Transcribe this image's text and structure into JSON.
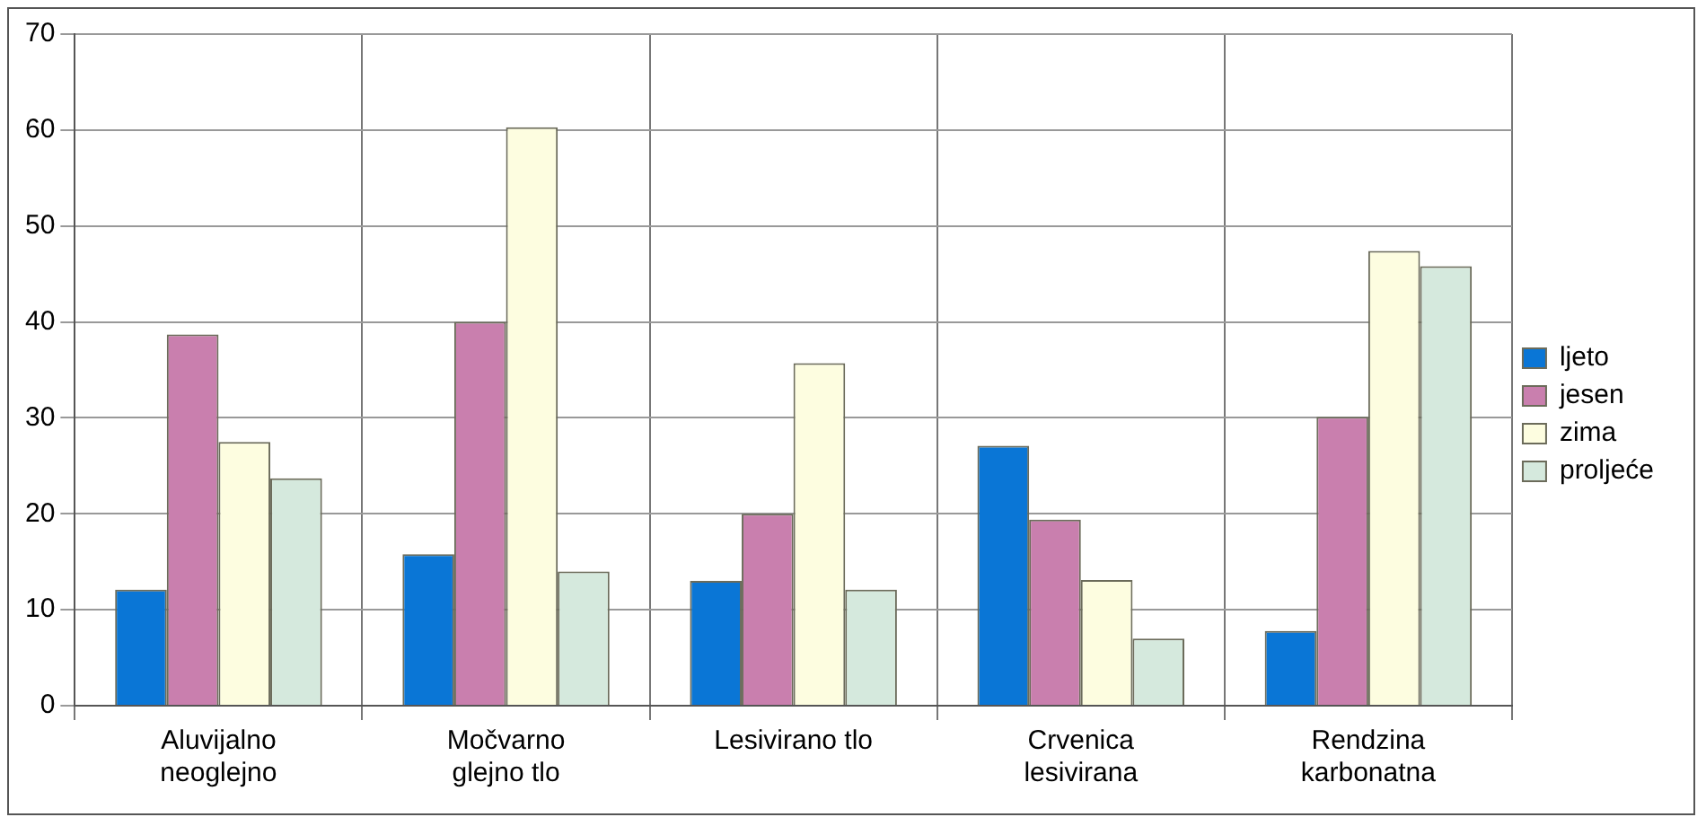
{
  "chart_data": {
    "type": "bar",
    "categories": [
      "Aluvijalno\nneoglejno",
      "Močvarno\nglejno tlo",
      "Lesivirano tlo",
      "Crvenica\nlesivirana",
      "Rendzina\nkarbonatna"
    ],
    "series": [
      {
        "name": "ljeto",
        "color": "#0a76d6",
        "values": [
          12.1,
          15.8,
          13.0,
          27.1,
          7.8
        ]
      },
      {
        "name": "jesen",
        "color": "#c97fae",
        "values": [
          38.7,
          40.0,
          20.0,
          19.4,
          30.1
        ]
      },
      {
        "name": "zima",
        "color": "#fdfde0",
        "values": [
          27.5,
          60.3,
          35.7,
          13.1,
          47.4
        ]
      },
      {
        "name": "proljeće",
        "color": "#d5e9dd",
        "values": [
          23.7,
          14.0,
          12.1,
          7.0,
          45.8
        ]
      }
    ],
    "ylim": [
      0,
      70
    ],
    "yticks": [
      0,
      10,
      20,
      30,
      40,
      50,
      60,
      70
    ],
    "grid": true,
    "legend": "right"
  }
}
